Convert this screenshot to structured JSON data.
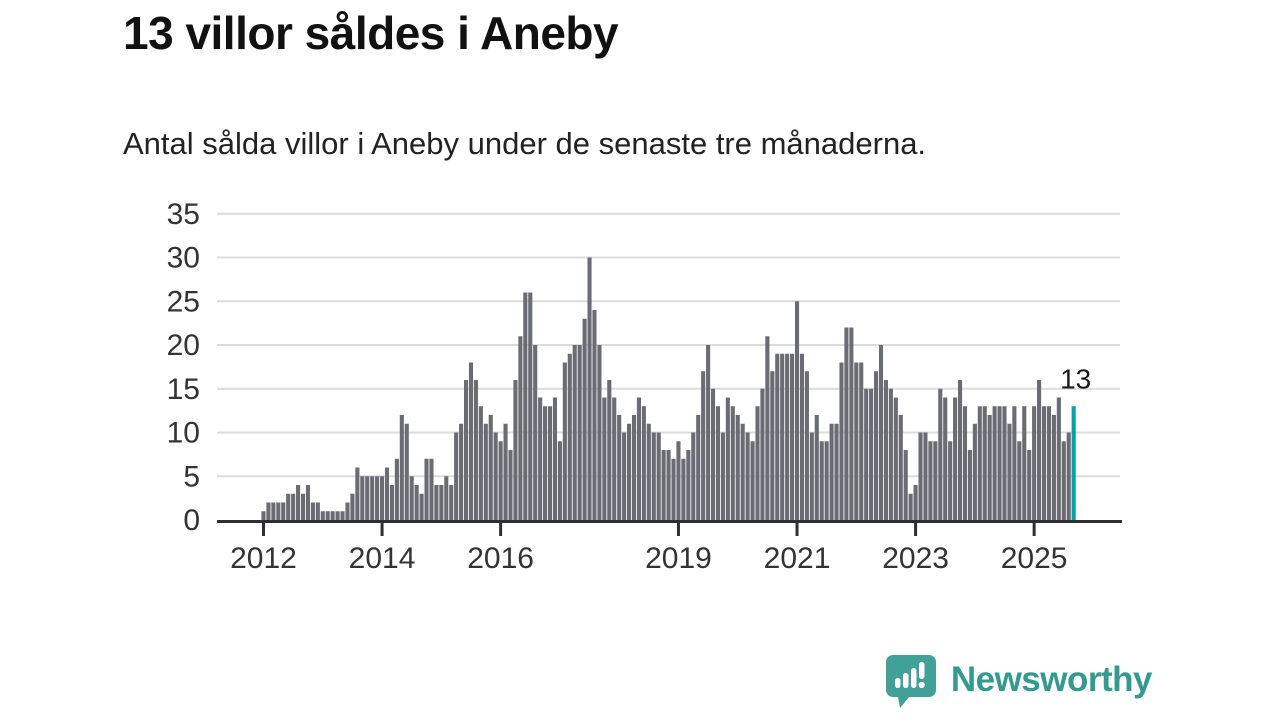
{
  "header": {
    "title": "13 villor såldes i Aneby",
    "subtitle": "Antal sålda villor i Aneby under de senaste tre månaderna."
  },
  "chart_data": {
    "type": "bar",
    "title": "13 villor såldes i Aneby",
    "subtitle": "Antal sålda villor i Aneby under de senaste tre månaderna.",
    "x_start": "2012-01",
    "x_frequency": "monthly",
    "monthly_values_by_year": [
      {
        "year": 2012,
        "values": [
          1,
          2,
          2,
          2,
          2,
          3,
          3,
          4,
          3,
          4,
          2,
          2
        ]
      },
      {
        "year": 2013,
        "values": [
          1,
          1,
          1,
          1,
          1,
          2,
          3,
          6,
          5,
          5,
          5,
          5
        ]
      },
      {
        "year": 2014,
        "values": [
          5,
          6,
          4,
          7,
          12,
          11,
          5,
          4,
          3,
          7,
          7,
          4
        ]
      },
      {
        "year": 2015,
        "values": [
          4,
          5,
          4,
          10,
          11,
          16,
          18,
          16,
          13,
          11,
          12,
          10
        ]
      },
      {
        "year": 2016,
        "values": [
          9,
          11,
          8,
          16,
          21,
          26,
          26,
          20,
          14,
          13,
          13,
          14
        ]
      },
      {
        "year": 2017,
        "values": [
          9,
          18,
          19,
          20,
          20,
          23,
          30,
          24,
          20,
          14,
          16,
          14
        ]
      },
      {
        "year": 2018,
        "values": [
          12,
          10,
          11,
          12,
          14,
          13,
          11,
          10,
          10,
          8,
          8,
          7
        ]
      },
      {
        "year": 2019,
        "values": [
          9,
          7,
          8,
          10,
          12,
          17,
          20,
          15,
          13,
          10,
          14,
          13
        ]
      },
      {
        "year": 2020,
        "values": [
          12,
          11,
          10,
          9,
          13,
          15,
          21,
          17,
          19,
          19,
          19,
          19
        ]
      },
      {
        "year": 2021,
        "values": [
          25,
          19,
          17,
          10,
          12,
          9,
          9,
          11,
          11,
          18,
          22,
          22
        ]
      },
      {
        "year": 2022,
        "values": [
          18,
          18,
          15,
          15,
          17,
          20,
          16,
          15,
          14,
          12,
          8,
          3
        ]
      },
      {
        "year": 2023,
        "values": [
          4,
          10,
          10,
          9,
          9,
          15,
          14,
          9,
          14,
          16,
          13,
          8
        ]
      },
      {
        "year": 2024,
        "values": [
          11,
          13,
          13,
          12,
          13,
          13,
          13,
          11,
          13,
          9,
          13,
          8
        ]
      },
      {
        "year": 2025,
        "values": [
          13,
          16,
          13,
          13,
          12,
          14,
          9,
          10,
          13
        ]
      }
    ],
    "highlight": {
      "position": "last",
      "value": 13,
      "label": "13"
    },
    "x_ticks": [
      {
        "label": "2012",
        "month_index": 0
      },
      {
        "label": "2014",
        "month_index": 24
      },
      {
        "label": "2016",
        "month_index": 48
      },
      {
        "label": "2019",
        "month_index": 84
      },
      {
        "label": "2021",
        "month_index": 108
      },
      {
        "label": "2023",
        "month_index": 132
      },
      {
        "label": "2025",
        "month_index": 156
      }
    ],
    "y_ticks": [
      0,
      5,
      10,
      15,
      20,
      25,
      30,
      35
    ],
    "ylim": [
      0,
      35
    ],
    "xlabel": "",
    "ylabel": "",
    "grid": true,
    "legend": false,
    "colors": {
      "bar": "#6b6b74",
      "highlight": "#00a2a3",
      "gridline": "#dcdcdc",
      "axis": "#2f2f2f",
      "tick_label": "#333333",
      "annotation": "#1a1a1a"
    }
  },
  "footer": {
    "brand": "Newsworthy",
    "logo_icon": "bar-chart-speech-bubble-icon",
    "brand_color": "#349a91",
    "icon_color": "#41a097"
  }
}
